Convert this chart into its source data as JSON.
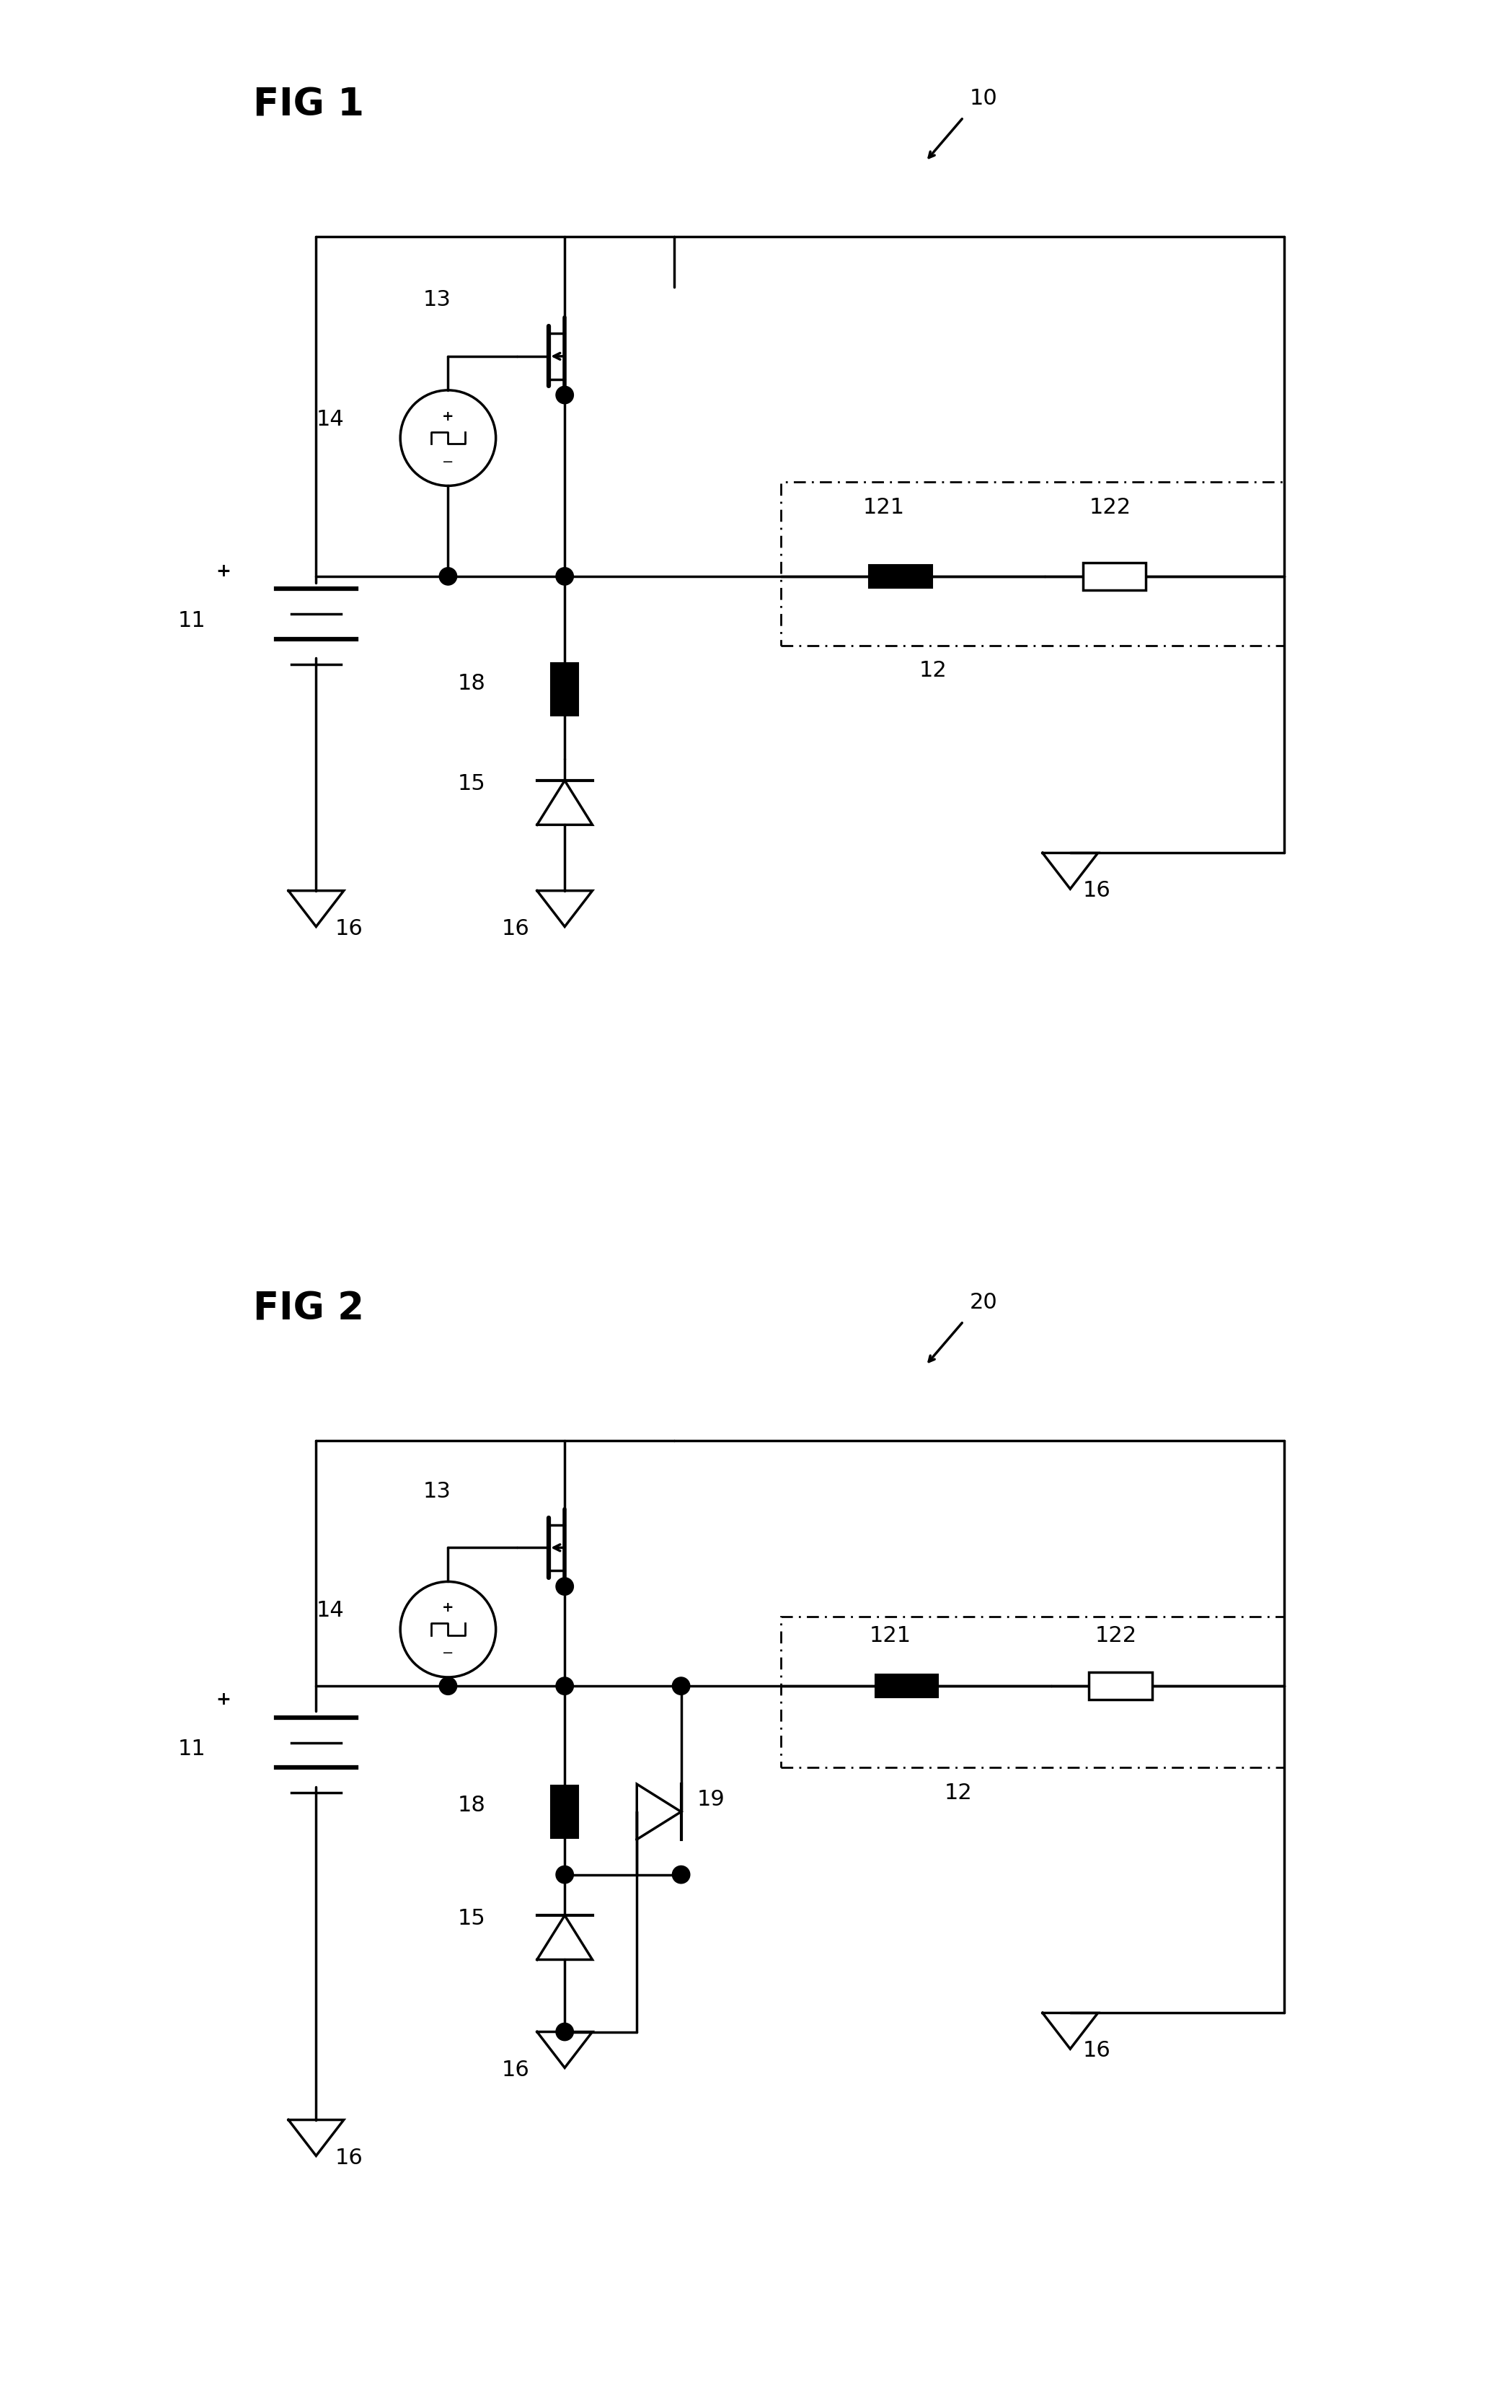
{
  "fig_width": 20.97,
  "fig_height": 33.38,
  "bg_color": "#ffffff",
  "lc": "#000000",
  "lw": 2.5,
  "fig1_title": "FIG 1",
  "fig2_title": "FIG 2",
  "label_10": "10",
  "label_20": "20",
  "label_11": "11",
  "label_12": "12",
  "label_13": "13",
  "label_14": "14",
  "label_15": "15",
  "label_16": "16",
  "label_18": "18",
  "label_19": "19",
  "label_121": "121",
  "label_122": "122",
  "title_fontsize": 38,
  "label_fontsize": 22,
  "small_label_fontsize": 18
}
